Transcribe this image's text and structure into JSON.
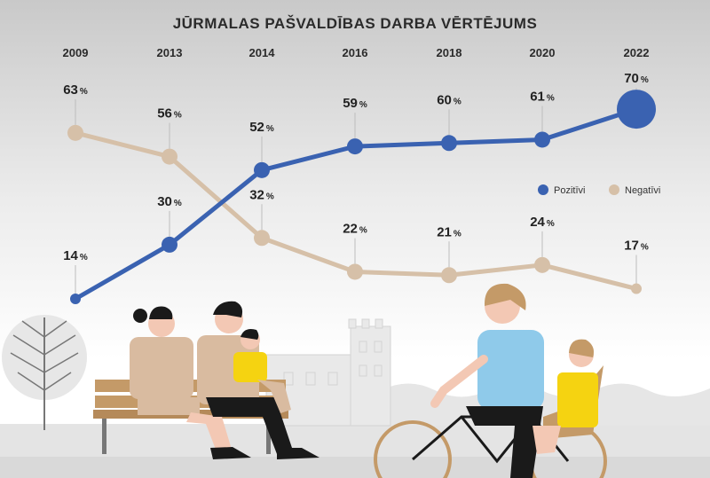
{
  "chart_data": {
    "type": "line",
    "title": "JŪRMALAS PAŠVALDĪBAS DARBA VĒRTĒJUMS",
    "categories": [
      "2009",
      "2013",
      "2014",
      "2016",
      "2018",
      "2020",
      "2022"
    ],
    "unit": "%",
    "legend": "right",
    "series": [
      {
        "name": "Pozitīvi",
        "values": [
          14,
          30,
          52,
          59,
          60,
          61,
          70
        ],
        "color": "#3a62b1"
      },
      {
        "name": "Negatīvi",
        "values": [
          63,
          56,
          32,
          22,
          21,
          24,
          17
        ],
        "color": "#d6c0a8"
      }
    ]
  }
}
